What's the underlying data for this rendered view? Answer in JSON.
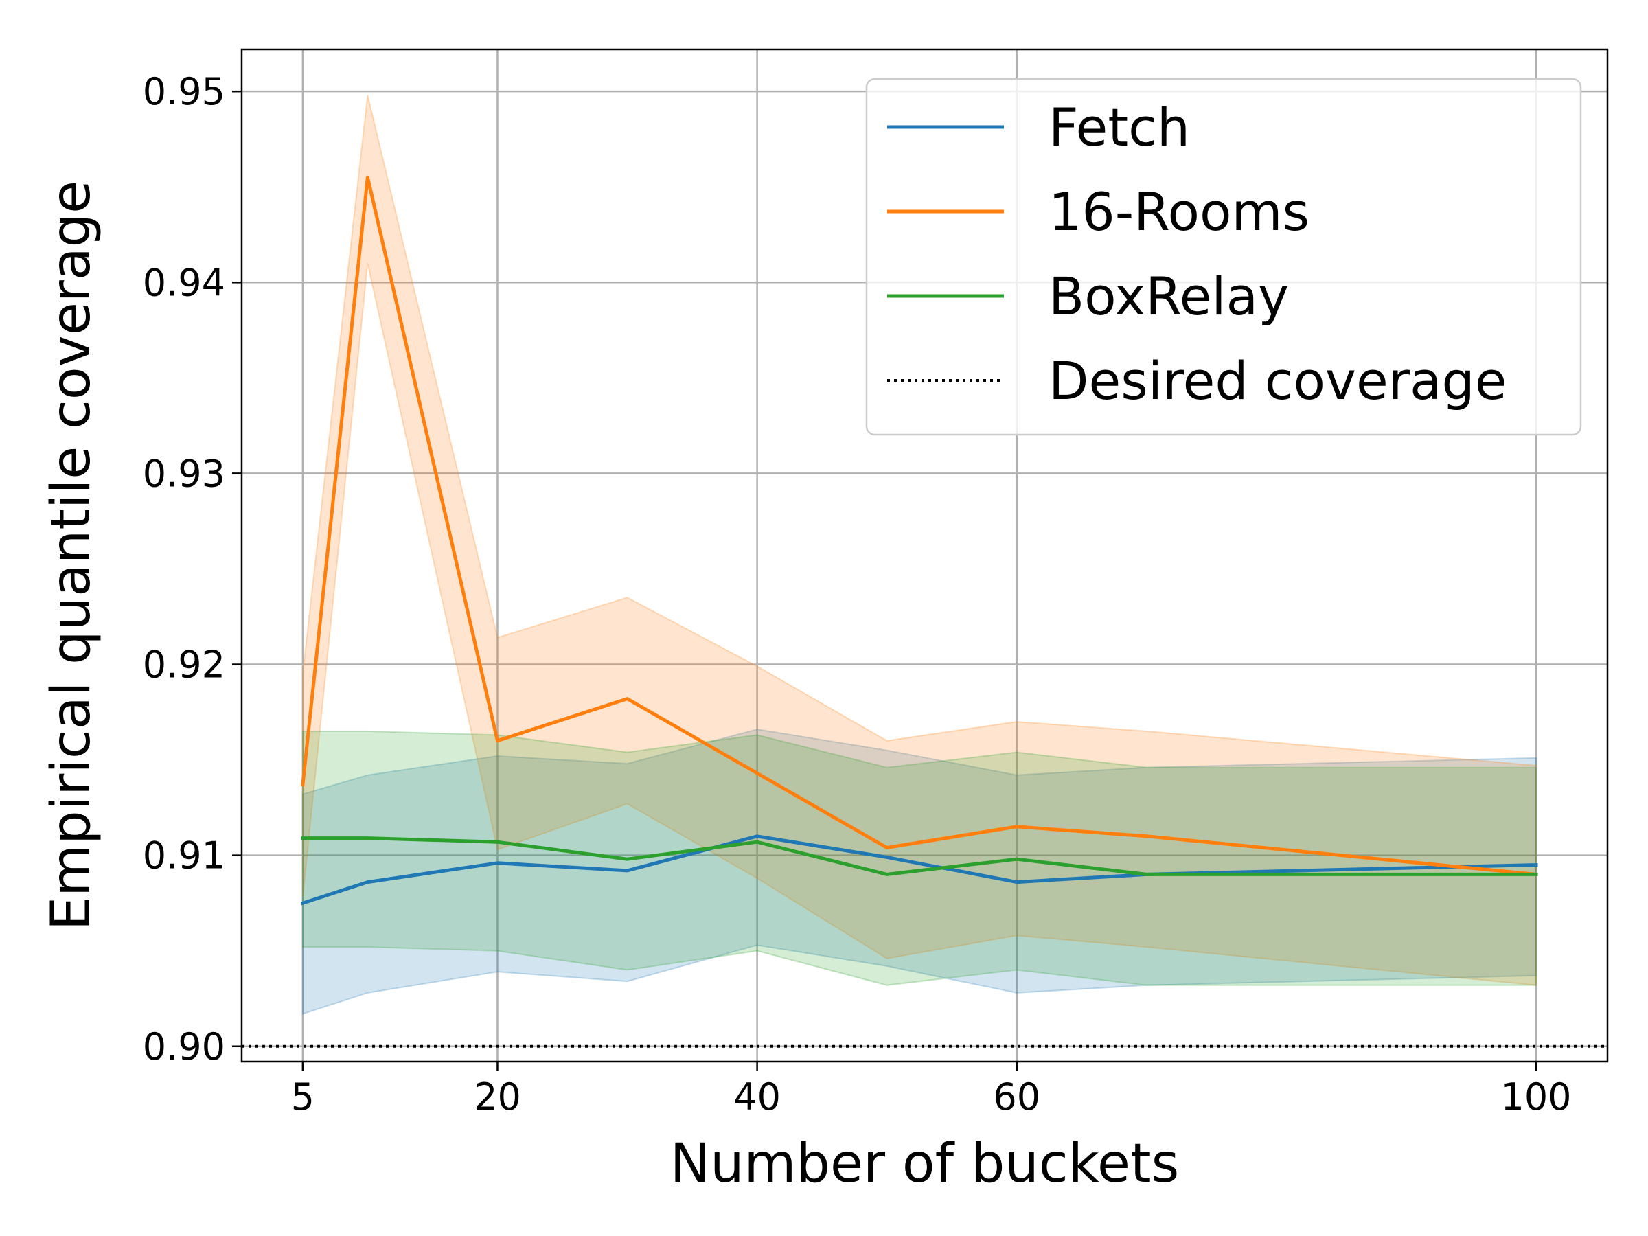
{
  "chart_data": {
    "type": "line",
    "xlabel": "Number of buckets",
    "ylabel": "Empirical quantile coverage",
    "xlim": [
      0.3,
      105.5
    ],
    "ylim": [
      0.8992,
      0.9522
    ],
    "x_ticks": [
      5,
      20,
      40,
      60,
      100
    ],
    "y_ticks": [
      0.9,
      0.91,
      0.92,
      0.93,
      0.94,
      0.95
    ],
    "y_tick_labels": [
      "0.90",
      "0.91",
      "0.92",
      "0.93",
      "0.94",
      "0.95"
    ],
    "x": [
      5,
      10,
      20,
      30,
      40,
      50,
      60,
      70,
      100
    ],
    "grid": true,
    "legend_position": "top-right",
    "series": [
      {
        "name": "Fetch",
        "color": "#1f77b4",
        "values": [
          0.9075,
          0.9086,
          0.9096,
          0.9092,
          0.911,
          0.9099,
          0.9086,
          0.909,
          0.9095
        ],
        "lower": [
          0.9017,
          0.9028,
          0.9039,
          0.9034,
          0.9053,
          0.9042,
          0.9028,
          0.9032,
          0.9037
        ],
        "upper": [
          0.9132,
          0.9142,
          0.9152,
          0.9148,
          0.9166,
          0.9155,
          0.9142,
          0.9146,
          0.9151
        ]
      },
      {
        "name": "16-Rooms",
        "color": "#ff7f0e",
        "values": [
          0.9137,
          0.9455,
          0.916,
          0.9182,
          0.9143,
          0.9104,
          0.9115,
          0.911,
          0.909
        ],
        "lower": [
          0.9078,
          0.941,
          0.9103,
          0.9127,
          0.9088,
          0.9046,
          0.9058,
          0.9052,
          0.9032
        ],
        "upper": [
          0.9195,
          0.9498,
          0.9214,
          0.9235,
          0.9199,
          0.916,
          0.917,
          0.9165,
          0.9147
        ]
      },
      {
        "name": "BoxRelay",
        "color": "#2ca02c",
        "values": [
          0.9109,
          0.9109,
          0.9107,
          0.9098,
          0.9107,
          0.909,
          0.9098,
          0.909,
          0.909
        ],
        "lower": [
          0.9052,
          0.9052,
          0.905,
          0.904,
          0.905,
          0.9032,
          0.904,
          0.9032,
          0.9032
        ],
        "upper": [
          0.9165,
          0.9165,
          0.9163,
          0.9154,
          0.9163,
          0.9146,
          0.9154,
          0.9146,
          0.9146
        ]
      }
    ],
    "reference_lines": [
      {
        "name": "Desired coverage",
        "y": 0.9,
        "style": "dotted",
        "color": "#000000"
      }
    ]
  }
}
